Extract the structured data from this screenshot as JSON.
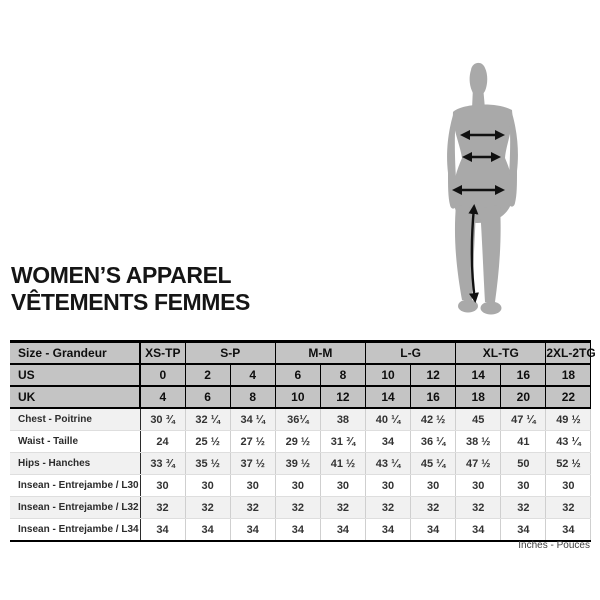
{
  "title": {
    "line1": "WOMEN’S APPAREL",
    "line2": "VÊTEMENTS FEMMES"
  },
  "figure": {
    "icon": "female-silhouette-icon",
    "arrows": [
      "chest",
      "waist",
      "hips",
      "inseam"
    ]
  },
  "table": {
    "size_label": "Size - Grandeur",
    "groups": [
      {
        "label": "XS-TP",
        "span": 1
      },
      {
        "label": "S-P",
        "span": 2
      },
      {
        "label": "M-M",
        "span": 2
      },
      {
        "label": "L-G",
        "span": 2
      },
      {
        "label": "XL-TG",
        "span": 2
      },
      {
        "label": "2XL-2TG",
        "span": 1
      }
    ],
    "size_rows": [
      {
        "label": "US",
        "values": [
          "0",
          "2",
          "4",
          "6",
          "8",
          "10",
          "12",
          "14",
          "16",
          "18"
        ]
      },
      {
        "label": "UK",
        "values": [
          "4",
          "6",
          "8",
          "10",
          "12",
          "14",
          "16",
          "18",
          "20",
          "22"
        ]
      }
    ],
    "measure_rows": [
      {
        "label": "Chest - Poitrine",
        "values": [
          "30 ¾",
          "32 ¼",
          "34 ¼",
          "36¼",
          "38",
          "40 ¼",
          "42 ½",
          "45",
          "47 ¼",
          "49 ½"
        ]
      },
      {
        "label": "Waist - Taille",
        "values": [
          "24",
          "25 ½",
          "27 ½",
          "29 ½",
          "31 ¾",
          "34",
          "36 ¼",
          "38 ½",
          "41",
          "43 ¼"
        ]
      },
      {
        "label": "Hips - Hanches",
        "values": [
          "33 ¾",
          "35 ½",
          "37 ½",
          "39 ½",
          "41 ½",
          "43 ¼",
          "45 ¼",
          "47 ½",
          "50",
          "52 ½"
        ]
      },
      {
        "label": "Insean - Entrejambe / L30",
        "values": [
          "30",
          "30",
          "30",
          "30",
          "30",
          "30",
          "30",
          "30",
          "30",
          "30"
        ]
      },
      {
        "label": "Insean - Entrejambe / L32",
        "values": [
          "32",
          "32",
          "32",
          "32",
          "32",
          "32",
          "32",
          "32",
          "32",
          "32"
        ]
      },
      {
        "label": "Insean - Entrejambe / L34",
        "values": [
          "34",
          "34",
          "34",
          "34",
          "34",
          "34",
          "34",
          "34",
          "34",
          "34"
        ]
      }
    ]
  },
  "footnote": "Inches - Pouces",
  "colors": {
    "header_gray": "#c4c4c4",
    "row_alt": "#f1f1f1",
    "silhouette": "#a9a9a9",
    "arrow_black": "#111111"
  }
}
